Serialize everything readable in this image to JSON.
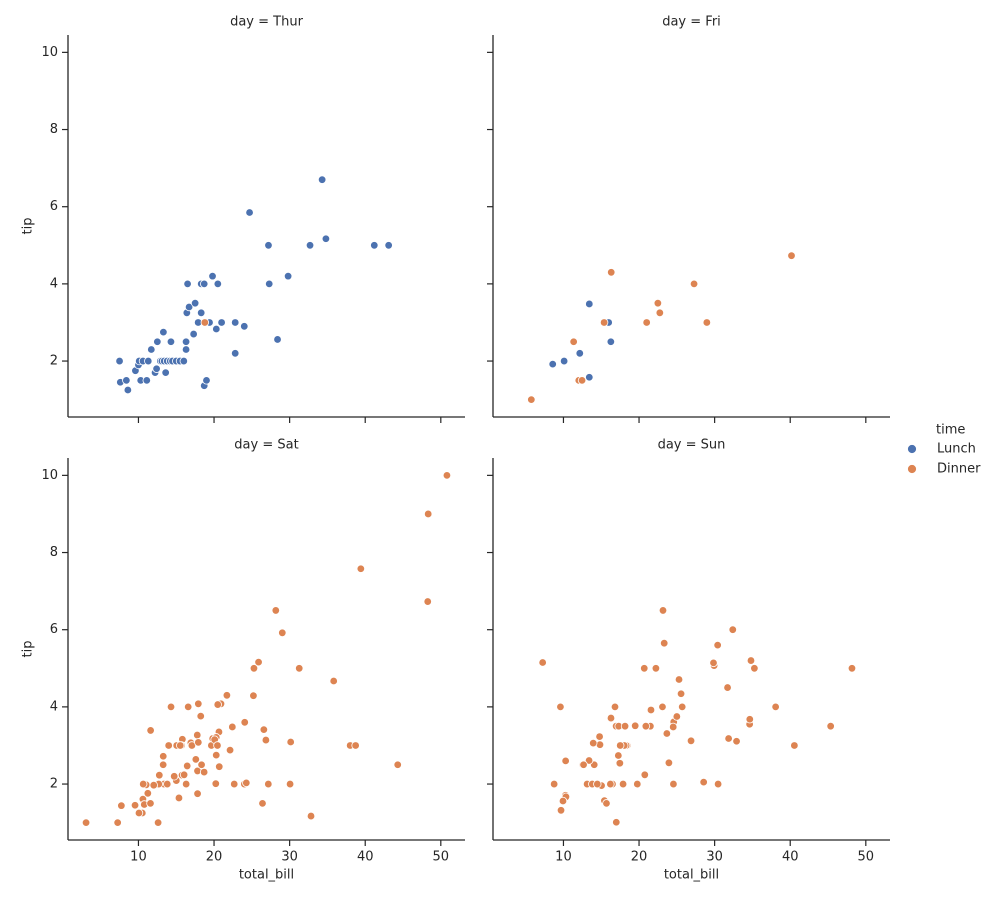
{
  "legend": {
    "title": "time",
    "position": "right"
  },
  "chart_data": [
    {
      "type": "scatter",
      "title": "day = Thur",
      "ylabel": "tip",
      "xlim": [
        0.68,
        53.2
      ],
      "ylim": [
        0.55,
        10.45
      ],
      "xticks": [
        10,
        20,
        30,
        40,
        50
      ],
      "yticks": [
        2,
        4,
        6,
        8,
        10
      ],
      "series": [
        {
          "name": "Lunch",
          "color": "#4c72b0",
          "x": [
            7.5,
            7.6,
            8.4,
            8.6,
            9.6,
            10,
            10.1,
            10.3,
            10.6,
            11.1,
            11.3,
            11.7,
            12.2,
            12.4,
            12.5,
            12.9,
            13.1,
            13.3,
            13.4,
            13.6,
            13.8,
            14.2,
            14.3,
            14.5,
            15,
            15.5,
            16,
            16.3,
            16.3,
            16.4,
            16.5,
            16.7,
            17.3,
            17.5,
            17.9,
            18.3,
            18.3,
            18.7,
            18.7,
            19,
            19.4,
            19.8,
            20.3,
            20.5,
            21,
            22.8,
            22.8,
            24,
            24.7,
            27.2,
            27.3,
            28.4,
            29.8,
            32.7,
            34.3,
            34.8,
            41.2,
            43.1
          ],
          "y": [
            2,
            1.45,
            1.5,
            1.25,
            1.75,
            1.9,
            2,
            1.5,
            2,
            1.5,
            2,
            2.3,
            1.7,
            1.8,
            2.5,
            2,
            2,
            2.75,
            2,
            1.7,
            2,
            2,
            2.5,
            2,
            2,
            2,
            2,
            2.3,
            2.5,
            3.25,
            4,
            3.4,
            2.7,
            3.5,
            3,
            3.25,
            4,
            4,
            1.36,
            1.5,
            3,
            4.2,
            2.83,
            4,
            3,
            3,
            2.2,
            2.9,
            5.85,
            5,
            4,
            2.56,
            4.2,
            5,
            6.7,
            5.17,
            5,
            5
          ]
        },
        {
          "name": "Dinner",
          "color": "#dd8452",
          "x": [
            18.78
          ],
          "y": [
            3
          ]
        }
      ]
    },
    {
      "type": "scatter",
      "title": "day = Fri",
      "xlim": [
        0.68,
        53.2
      ],
      "ylim": [
        0.55,
        10.45
      ],
      "xticks": [
        10,
        20,
        30,
        40,
        50
      ],
      "yticks": [
        2,
        4,
        6,
        8,
        10
      ],
      "series": [
        {
          "color": "#4c72b0",
          "x": [
            8.58,
            10.09,
            12.16,
            13.42,
            13.42,
            15.98,
            16.27
          ],
          "y": [
            1.92,
            2,
            2.2,
            3.48,
            1.58,
            3,
            2.5
          ]
        },
        {
          "color": "#dd8452",
          "x": [
            5.75,
            11.35,
            12.03,
            12.46,
            15.38,
            16.32,
            21.01,
            22.49,
            22.75,
            27.28,
            28.97,
            40.17
          ],
          "y": [
            1,
            2.5,
            1.5,
            1.5,
            3,
            4.3,
            3,
            3.5,
            3.25,
            4,
            3,
            4.73
          ]
        }
      ]
    },
    {
      "type": "scatter",
      "title": "day = Sat",
      "xlabel": "total_bill",
      "ylabel": "tip",
      "xlim": [
        0.68,
        53.2
      ],
      "ylim": [
        0.55,
        10.45
      ],
      "xticks": [
        10,
        20,
        30,
        40,
        50
      ],
      "yticks": [
        2,
        4,
        6,
        8,
        10
      ],
      "series": [
        {
          "color": "#dd8452",
          "x": [
            20.65,
            17.92,
            20.29,
            15.77,
            39.42,
            19.82,
            17.81,
            13.37,
            12.69,
            21.7,
            19.65,
            9.55,
            18.35,
            15.06,
            20.69,
            17.78,
            24.06,
            16.31,
            16.93,
            18.69,
            31.27,
            16.04,
            38.01,
            26.41,
            11.24,
            48.27,
            20.29,
            13.81,
            11.02,
            18.29,
            17.59,
            20.08,
            16.45,
            3.07,
            20.23,
            15.01,
            12.02,
            17.07,
            26.86,
            25.28,
            14.73,
            10.51,
            17.92,
            44.3,
            22.42,
            20.92,
            15.36,
            20.49,
            25.21,
            18.24,
            14.31,
            14,
            7.25,
            10.59,
            10.63,
            50.81,
            15.81,
            48.33,
            20.45,
            13.28,
            22.12,
            24.01,
            15.69,
            11.61,
            10.77,
            15.53,
            10.07,
            12.6,
            32.83,
            35.83,
            29.03,
            27.18,
            22.67,
            17.82,
            28.17,
            26.59,
            38.73,
            24.27,
            12.76,
            30.06,
            25.89,
            13.27,
            11.59,
            7.74,
            30.14,
            16.58
          ],
          "y": [
            3.35,
            4.08,
            2.75,
            2.23,
            7.58,
            3.18,
            2.34,
            2,
            2,
            4.3,
            3,
            1.45,
            2.5,
            3,
            2.45,
            3.27,
            3.6,
            2,
            3.07,
            2.31,
            5,
            2.24,
            3,
            1.5,
            1.76,
            6.73,
            3.21,
            2,
            1.98,
            3.76,
            2.64,
            3.15,
            2.47,
            1,
            2.01,
            2.09,
            1.97,
            3,
            3.14,
            5,
            2.2,
            1.25,
            3.08,
            2.5,
            3.48,
            4.08,
            1.64,
            4.06,
            4.29,
            3.76,
            4,
            3,
            1,
            1.61,
            2,
            10,
            3.16,
            9,
            3,
            2.72,
            2.88,
            2,
            3,
            3.39,
            1.47,
            3,
            1.25,
            1,
            1.17,
            4.67,
            5.92,
            2,
            2,
            1.75,
            6.5,
            3.41,
            3,
            2.03,
            2.23,
            2,
            5.16,
            2.5,
            1.5,
            1.44,
            3.09,
            4
          ]
        }
      ]
    },
    {
      "type": "scatter",
      "title": "day = Sun",
      "xlabel": "total_bill",
      "xlim": [
        0.68,
        53.2
      ],
      "ylim": [
        0.55,
        10.45
      ],
      "xticks": [
        10,
        20,
        30,
        40,
        50
      ],
      "yticks": [
        2,
        4,
        6,
        8,
        10
      ],
      "series": [
        {
          "color": "#dd8452",
          "x": [
            16.99,
            10.34,
            21.01,
            23.68,
            24.59,
            25.29,
            8.77,
            26.88,
            15.04,
            14.78,
            10.27,
            35.26,
            15.42,
            18.43,
            14.83,
            21.58,
            10.33,
            16.29,
            16.97,
            17.46,
            13.94,
            9.68,
            30.4,
            18.29,
            22.23,
            32.4,
            28.55,
            18.04,
            12.54,
            10.29,
            34.81,
            9.94,
            25.56,
            19.49,
            38.07,
            23.95,
            25.71,
            17.31,
            29.93,
            14.07,
            13.13,
            17.26,
            24.55,
            19.77,
            29.85,
            48.17,
            25,
            13.39,
            16.49,
            21.5,
            12.66,
            16.21,
            13.81,
            17.51,
            24.52,
            20.76,
            31.71,
            7.25,
            31.85,
            16.82,
            32.9,
            17.89,
            14.48,
            9.6,
            34.63,
            34.65,
            23.33,
            45.35,
            23.17,
            40.55,
            20.69,
            20.9,
            30.46,
            18.15,
            23.1,
            15.69
          ],
          "y": [
            1.01,
            1.66,
            3.5,
            3.31,
            3.61,
            4.71,
            2,
            3.12,
            1.96,
            3.23,
            1.71,
            5,
            1.57,
            3,
            3.02,
            3.92,
            1.67,
            3.71,
            3.5,
            2.54,
            3.06,
            1.32,
            5.6,
            3,
            5,
            6,
            2.05,
            3,
            2.5,
            2.6,
            5.2,
            1.56,
            4.34,
            3.51,
            4,
            2.55,
            4,
            3.5,
            5.07,
            2.5,
            2,
            2.74,
            2,
            2,
            5.14,
            5,
            3.75,
            2.61,
            2,
            3.5,
            2.5,
            2,
            2,
            3,
            3.48,
            2.24,
            4.5,
            5.15,
            3.18,
            4,
            3.11,
            2,
            2,
            4,
            3.55,
            3.68,
            5.65,
            3.5,
            6.5,
            3,
            5,
            3.5,
            2,
            3.5,
            4,
            1.5
          ]
        }
      ]
    }
  ]
}
